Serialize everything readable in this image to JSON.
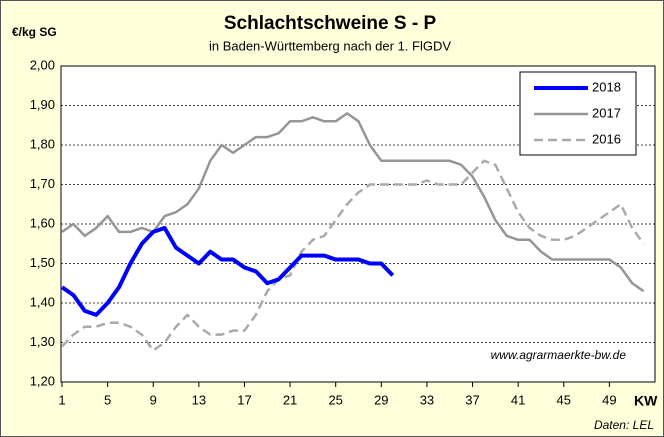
{
  "chart_data": {
    "type": "line",
    "title": "Schlachtschweine S - P",
    "subtitle": "in Baden-Württemberg nach der 1. FlGDV",
    "y_label": "€/kg SG",
    "x_label": "KW",
    "annotations": [
      "www.agrarmaerkte-bw.de",
      "Daten: LEL"
    ],
    "x": [
      1,
      2,
      3,
      4,
      5,
      6,
      7,
      8,
      9,
      10,
      11,
      12,
      13,
      14,
      15,
      16,
      17,
      18,
      19,
      20,
      21,
      22,
      23,
      24,
      25,
      26,
      27,
      28,
      29,
      30,
      31,
      32,
      33,
      34,
      35,
      36,
      37,
      38,
      39,
      40,
      41,
      42,
      43,
      44,
      45,
      46,
      47,
      48,
      49,
      50,
      51,
      52
    ],
    "series": [
      {
        "name": "2018",
        "color": "#0000ff",
        "width": 4,
        "dash": false,
        "values": [
          1.44,
          1.42,
          1.38,
          1.37,
          1.4,
          1.44,
          1.5,
          1.55,
          1.58,
          1.59,
          1.54,
          1.52,
          1.5,
          1.53,
          1.51,
          1.51,
          1.49,
          1.48,
          1.45,
          1.46,
          1.49,
          1.52,
          1.52,
          1.52,
          1.51,
          1.51,
          1.51,
          1.5,
          1.5,
          1.47,
          null,
          null,
          null,
          null,
          null,
          null,
          null,
          null,
          null,
          null,
          null,
          null,
          null,
          null,
          null,
          null,
          null,
          null,
          null,
          null,
          null,
          null
        ]
      },
      {
        "name": "2017",
        "color": "#969696",
        "width": 2.5,
        "dash": false,
        "values": [
          1.58,
          1.6,
          1.57,
          1.59,
          1.62,
          1.58,
          1.58,
          1.59,
          1.58,
          1.62,
          1.63,
          1.65,
          1.69,
          1.76,
          1.8,
          1.78,
          1.8,
          1.82,
          1.82,
          1.83,
          1.86,
          1.86,
          1.87,
          1.86,
          1.86,
          1.88,
          1.86,
          1.8,
          1.76,
          1.76,
          1.76,
          1.76,
          1.76,
          1.76,
          1.76,
          1.75,
          1.72,
          1.67,
          1.61,
          1.57,
          1.56,
          1.56,
          1.53,
          1.51,
          1.51,
          1.51,
          1.51,
          1.51,
          1.51,
          1.49,
          1.45,
          1.43
        ]
      },
      {
        "name": "2016",
        "color": "#aaaaaa",
        "width": 2.5,
        "dash": true,
        "values": [
          1.29,
          1.32,
          1.34,
          1.34,
          1.35,
          1.35,
          1.34,
          1.32,
          1.28,
          1.3,
          1.34,
          1.37,
          1.34,
          1.32,
          1.32,
          1.33,
          1.33,
          1.37,
          1.43,
          1.46,
          1.47,
          1.53,
          1.56,
          1.57,
          1.61,
          1.65,
          1.68,
          1.7,
          1.7,
          1.7,
          1.7,
          1.7,
          1.71,
          1.7,
          1.7,
          1.7,
          1.73,
          1.76,
          1.75,
          1.69,
          1.63,
          1.59,
          1.57,
          1.56,
          1.56,
          1.57,
          1.59,
          1.61,
          1.63,
          1.65,
          1.59,
          1.55
        ]
      }
    ],
    "xlim": [
      1,
      53
    ],
    "xticks": [
      1,
      5,
      9,
      13,
      17,
      21,
      25,
      29,
      33,
      37,
      41,
      45,
      49
    ],
    "ylim": [
      1.2,
      2.0
    ],
    "yticks": [
      {
        "value": 1.2,
        "label": "1,20"
      },
      {
        "value": 1.3,
        "label": "1,30"
      },
      {
        "value": 1.4,
        "label": "1,40"
      },
      {
        "value": 1.5,
        "label": "1,50"
      },
      {
        "value": 1.6,
        "label": "1,60"
      },
      {
        "value": 1.7,
        "label": "1,70"
      },
      {
        "value": 1.8,
        "label": "1,80"
      },
      {
        "value": 1.9,
        "label": "1,90"
      },
      {
        "value": 2.0,
        "label": "2,00"
      }
    ],
    "grid": true,
    "legend": "upper right"
  }
}
